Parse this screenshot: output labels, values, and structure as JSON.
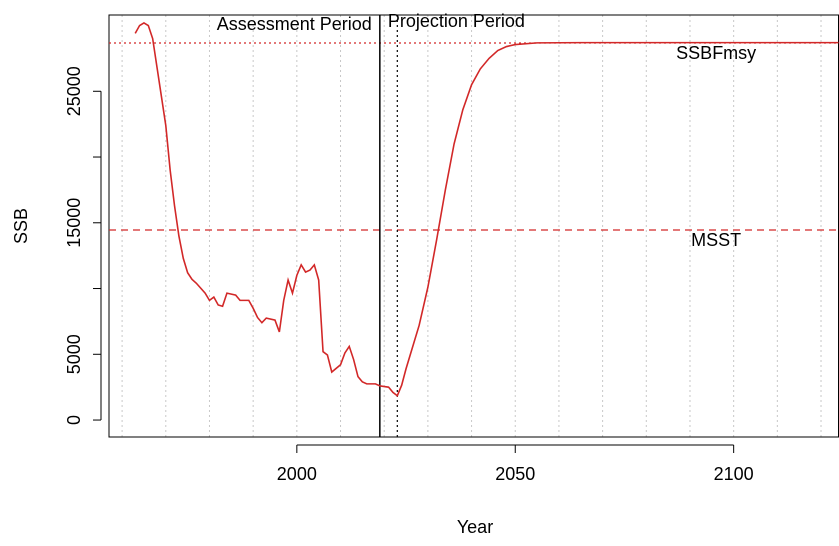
{
  "chart_data": {
    "type": "line",
    "x_label": "Year",
    "y_label": "SSB",
    "xlim": [
      1957,
      2124
    ],
    "ylim": [
      -1290,
      30800
    ],
    "xticks": [
      2000,
      2050,
      2100
    ],
    "yticks": [
      0,
      5000,
      {
        "value": 10000,
        "label": null
      },
      15000,
      {
        "value": 20000,
        "label": null
      },
      25000
    ],
    "xgrid": [
      1960,
      1970,
      1980,
      1990,
      2000,
      2010,
      2020,
      2030,
      2040,
      2050,
      2060,
      2070,
      2080,
      2090,
      2100,
      2110,
      2120
    ],
    "grid_color": "#c8c8c8",
    "series": [
      {
        "color": "#d22828",
        "x": [
          1963,
          1964,
          1965,
          1966,
          1967,
          1968,
          1969,
          1970,
          1971,
          1972,
          1973,
          1974,
          1975,
          1976,
          1977,
          1979,
          1980,
          1981,
          1982,
          1983,
          1984,
          1986,
          1987,
          1989,
          1990,
          1991,
          1992,
          1993,
          1995,
          1996,
          1997,
          1998,
          1999,
          2000,
          2001,
          2002,
          2003,
          2004,
          2005,
          2006,
          2007,
          2008,
          2010,
          2011,
          2012,
          2013,
          2014,
          2015,
          2016,
          2018,
          2019,
          2021,
          2022,
          2023,
          2024,
          2025,
          2026,
          2028,
          2030,
          2032,
          2034,
          2036,
          2038,
          2040,
          2042,
          2044,
          2046,
          2048,
          2050,
          2055,
          2065,
          2080,
          2100,
          2124
        ],
        "values": [
          29400,
          30000,
          30200,
          30000,
          29000,
          26800,
          24600,
          22400,
          19000,
          16300,
          14000,
          12300,
          11200,
          10700,
          10400,
          9650,
          9100,
          9350,
          8750,
          8650,
          9650,
          9500,
          9100,
          9100,
          8500,
          7800,
          7400,
          7750,
          7600,
          6700,
          9100,
          10650,
          9650,
          11000,
          11800,
          11250,
          11400,
          11800,
          10650,
          5200,
          4950,
          3650,
          4200,
          5100,
          5600,
          4600,
          3300,
          2900,
          2750,
          2750,
          2600,
          2500,
          2100,
          1850,
          2650,
          3900,
          5000,
          7200,
          10100,
          13700,
          17500,
          21000,
          23600,
          25500,
          26700,
          27500,
          28100,
          28400,
          28550,
          28680,
          28700,
          28700,
          28700,
          28700
        ]
      }
    ],
    "reference_lines": [
      {
        "axis": "y",
        "value": 28670,
        "label": "SSBFmsy",
        "style": "dotted",
        "color": "#d22828"
      },
      {
        "axis": "y",
        "value": 14450,
        "label": "MSST",
        "style": "dashed",
        "color": "#d22828"
      },
      {
        "axis": "x",
        "value": 2019,
        "style": "solid",
        "color": "#000000"
      },
      {
        "axis": "x",
        "value": 2023,
        "style": "dotted",
        "color": "#000000"
      }
    ],
    "period_labels": {
      "before": "Assessment Period",
      "after": "Projection Period"
    }
  }
}
